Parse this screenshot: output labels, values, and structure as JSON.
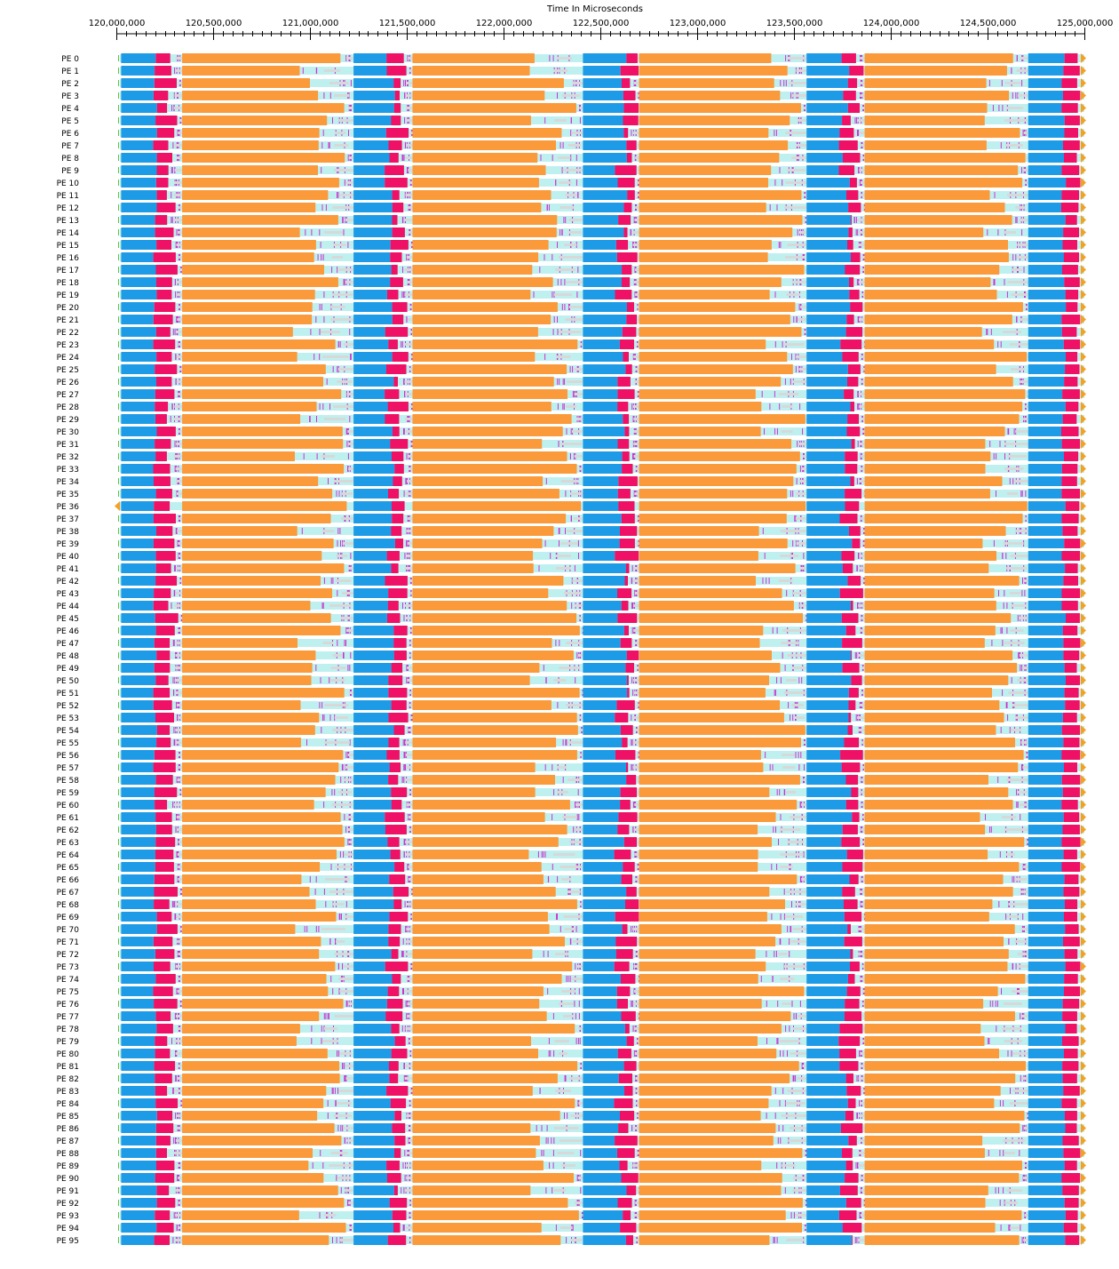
{
  "chart_data": {
    "type": "timeline",
    "title": "",
    "xlabel": "Time In Microseconds",
    "xlim": [
      120000000,
      125000000
    ],
    "x_ticks": [
      120000000,
      120500000,
      121000000,
      121500000,
      122000000,
      122500000,
      123000000,
      123500000,
      124000000,
      124500000,
      125000000
    ],
    "x_tick_labels": [
      "120,000,000",
      "120,500,000",
      "121,000,000",
      "121,500,000",
      "122,000,000",
      "122,500,000",
      "123,000,000",
      "123,500,000",
      "124,000,000",
      "124,500,000",
      "125,000,000"
    ],
    "row_labels": [
      "PE 0",
      "PE 1",
      "PE 2",
      "PE 3",
      "PE 4",
      "PE 5",
      "PE 6",
      "PE 7",
      "PE 8",
      "PE 9",
      "PE 10",
      "PE 11",
      "PE 12",
      "PE 13",
      "PE 14",
      "PE 15",
      "PE 16",
      "PE 17",
      "PE 18",
      "PE 19",
      "PE 20",
      "PE 21",
      "PE 22",
      "PE 23",
      "PE 24",
      "PE 25",
      "PE 26",
      "PE 27",
      "PE 28",
      "PE 29",
      "PE 30",
      "PE 31",
      "PE 32",
      "PE 33",
      "PE 34",
      "PE 35",
      "PE 36",
      "PE 37",
      "PE 38",
      "PE 39",
      "PE 40",
      "PE 41",
      "PE 42",
      "PE 43",
      "PE 44",
      "PE 45",
      "PE 46",
      "PE 47",
      "PE 48",
      "PE 49",
      "PE 50",
      "PE 51",
      "PE 52",
      "PE 53",
      "PE 54",
      "PE 55",
      "PE 56",
      "PE 57",
      "PE 58",
      "PE 59",
      "PE 60",
      "PE 61",
      "PE 62",
      "PE 63",
      "PE 64",
      "PE 65",
      "PE 66",
      "PE 67",
      "PE 68",
      "PE 69",
      "PE 70",
      "PE 71",
      "PE 72",
      "PE 73",
      "PE 74",
      "PE 75",
      "PE 76",
      "PE 77",
      "PE 78",
      "PE 79",
      "PE 80",
      "PE 81",
      "PE 82",
      "PE 83",
      "PE 84",
      "PE 85",
      "PE 86",
      "PE 87",
      "PE 88",
      "PE 89",
      "PE 90",
      "PE 91",
      "PE 92",
      "PE 93",
      "PE 94",
      "PE 95"
    ],
    "colors": {
      "blue": "#1e9be6",
      "magenta": "#ee1166",
      "orange": "#fa9a3a",
      "idle": "#bff0f0",
      "idle_gray": "#d8d8d8",
      "tick": "#cc33cc",
      "green": "#55cc33",
      "marker": "#f5a020"
    },
    "segments": [
      {
        "name": "blue",
        "color": "blue",
        "start": 120025000,
        "end_range": [
          120190000,
          120210000
        ]
      },
      {
        "name": "magenta",
        "color": "magenta",
        "end_range": [
          120260000,
          120320000
        ]
      },
      {
        "name": "orange",
        "color": "orange",
        "start": 120340000,
        "end_range": [
          120910000,
          121190000
        ]
      },
      {
        "name": "blue",
        "color": "blue",
        "start": 121225000,
        "end_range": [
          121385000,
          121440000
        ]
      },
      {
        "name": "magenta",
        "color": "magenta",
        "end_range": [
          121450000,
          121510000
        ]
      },
      {
        "name": "orange",
        "color": "orange",
        "start": 121530000,
        "end_range": [
          122130000,
          122400000
        ]
      },
      {
        "name": "blue",
        "color": "blue",
        "start": 122410000,
        "end_range": [
          122570000,
          122640000
        ]
      },
      {
        "name": "magenta",
        "color": "magenta",
        "end_range": [
          122640000,
          122700000
        ]
      },
      {
        "name": "orange",
        "color": "orange",
        "start": 122700000,
        "end_range": [
          123300000,
          123560000
        ]
      },
      {
        "name": "blue",
        "color": "blue",
        "start": 123565000,
        "end_range": [
          123730000,
          123800000
        ]
      },
      {
        "name": "magenta",
        "color": "magenta",
        "end_range": [
          123790000,
          123860000
        ]
      },
      {
        "name": "orange",
        "color": "orange",
        "start": 123865000,
        "end_range": [
          124460000,
          124705000
        ]
      },
      {
        "name": "blue",
        "color": "blue",
        "start": 124710000,
        "end_range": [
          124880000,
          124905000
        ]
      },
      {
        "name": "magenta",
        "color": "magenta",
        "end_range": [
          124960000,
          124980000
        ]
      }
    ]
  }
}
